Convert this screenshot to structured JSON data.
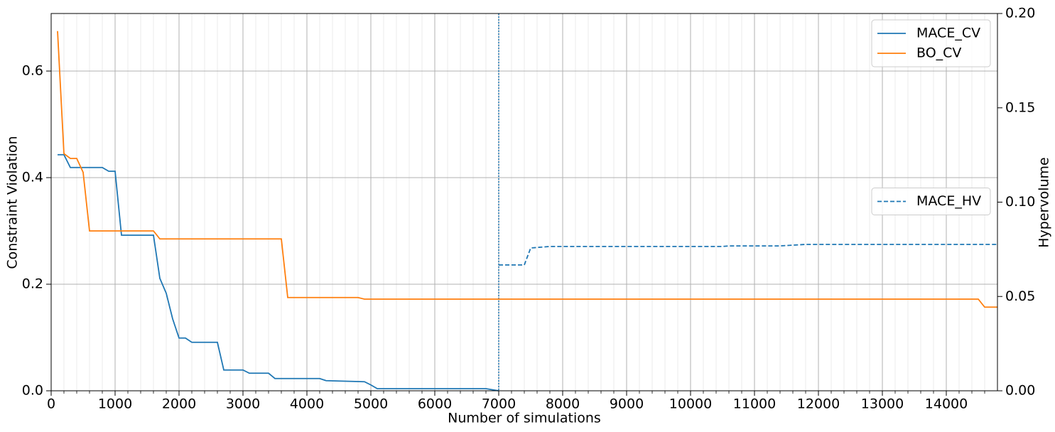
{
  "chart_data": {
    "type": "line",
    "xlabel": "Number of simulations",
    "ylabel": "Constraint Violation",
    "y2label": "Hypervolume",
    "xlim": [
      0,
      14800
    ],
    "xticks": [
      0,
      1000,
      2000,
      3000,
      4000,
      5000,
      6000,
      7000,
      8000,
      9000,
      10000,
      11000,
      12000,
      13000,
      14000
    ],
    "ylim": [
      0,
      0.708
    ],
    "yticks": [
      {
        "value": 0,
        "label": "0.0"
      },
      0.2,
      0.4,
      0.6
    ],
    "y2lim": [
      0,
      0.2
    ],
    "y2ticks": [
      {
        "value": 0,
        "label": "0.00"
      },
      0.05,
      {
        "value": 0.1,
        "label": "0.10"
      },
      0.15,
      {
        "value": 0.2,
        "label": "0.20"
      }
    ],
    "grid": true,
    "legend": "upper right",
    "legend2": "center right",
    "vlines": [
      {
        "value": 7000,
        "color": "#1f77b4"
      }
    ],
    "series": [
      {
        "name": "MACE_CV",
        "color": "#1f77b4",
        "axis": "y",
        "dash": false,
        "x": [
          100,
          200,
          300,
          800,
          900,
          1000,
          1100,
          1600,
          1700,
          1800,
          1900,
          2000,
          2100,
          2200,
          2600,
          2700,
          3000,
          3100,
          3400,
          3500,
          4200,
          4300,
          4600,
          4900,
          5000,
          5100,
          6800,
          7000
        ],
        "values": [
          0.443,
          0.443,
          0.419,
          0.419,
          0.412,
          0.412,
          0.292,
          0.292,
          0.211,
          0.183,
          0.135,
          0.099,
          0.099,
          0.091,
          0.091,
          0.039,
          0.039,
          0.033,
          0.033,
          0.023,
          0.023,
          0.019,
          0.018,
          0.017,
          0.011,
          0.004,
          0.004,
          0
        ]
      },
      {
        "name": "BO_CV",
        "color": "#ff7f0e",
        "axis": "y",
        "dash": false,
        "x": [
          100,
          200,
          300,
          400,
          500,
          600,
          1600,
          1700,
          3600,
          3700,
          4800,
          4900,
          14500,
          14600,
          14800
        ],
        "values": [
          0.675,
          0.445,
          0.436,
          0.436,
          0.41,
          0.3,
          0.3,
          0.285,
          0.285,
          0.175,
          0.175,
          0.172,
          0.172,
          0.157,
          0.157
        ]
      },
      {
        "name": "MACE_HV",
        "color": "#1f77b4",
        "axis": "y2",
        "dash": true,
        "x": [
          7000,
          7400,
          7500,
          7800,
          10500,
          10600,
          11400,
          11800,
          14800
        ],
        "values": [
          0.0667,
          0.0667,
          0.0757,
          0.0765,
          0.0765,
          0.0768,
          0.0768,
          0.0776,
          0.0776
        ]
      }
    ]
  }
}
